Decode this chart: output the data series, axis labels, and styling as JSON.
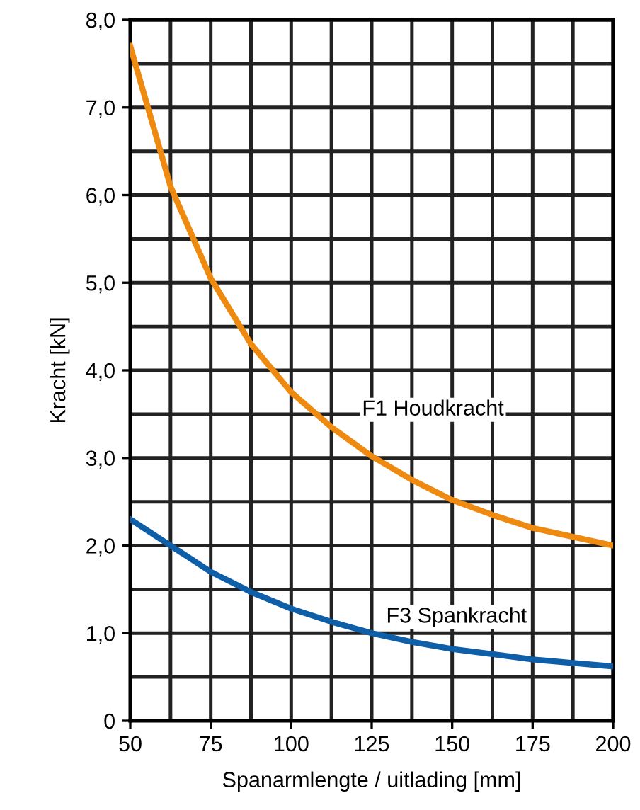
{
  "chart_data": {
    "type": "line",
    "xlabel": "Spanarmlengte / uitlading [mm]",
    "ylabel": "Kracht [kN]",
    "x": [
      50,
      62.5,
      75,
      87.5,
      100,
      112.5,
      125,
      137.5,
      150,
      162.5,
      175,
      187.5,
      200
    ],
    "series": [
      {
        "name": "F1 Houdkracht",
        "color": "#ee8a10",
        "values": [
          7.7,
          6.1,
          5.05,
          4.3,
          3.75,
          3.35,
          3.02,
          2.75,
          2.52,
          2.35,
          2.2,
          2.1,
          2.0
        ]
      },
      {
        "name": "F3 Spankracht",
        "color": "#0f5fa8",
        "values": [
          2.3,
          2.0,
          1.7,
          1.47,
          1.28,
          1.13,
          1.0,
          0.9,
          0.82,
          0.76,
          0.7,
          0.66,
          0.62
        ]
      }
    ],
    "xlim": [
      50,
      200
    ],
    "xticks": [
      50,
      75,
      100,
      125,
      150,
      175,
      200
    ],
    "ylim": [
      0,
      8
    ],
    "yticks": [
      {
        "value": 0,
        "label": "0"
      },
      {
        "value": 1,
        "label": "1,0"
      },
      {
        "value": 2,
        "label": "2,0"
      },
      {
        "value": 3,
        "label": "3,0"
      },
      {
        "value": 4,
        "label": "4,0"
      },
      {
        "value": 5,
        "label": "5,0"
      },
      {
        "value": 6,
        "label": "6,0"
      },
      {
        "value": 7,
        "label": "7,0"
      },
      {
        "value": 8,
        "label": "8,0"
      }
    ],
    "grid": true,
    "legend": false,
    "marker": "none",
    "line_style": "solid"
  }
}
